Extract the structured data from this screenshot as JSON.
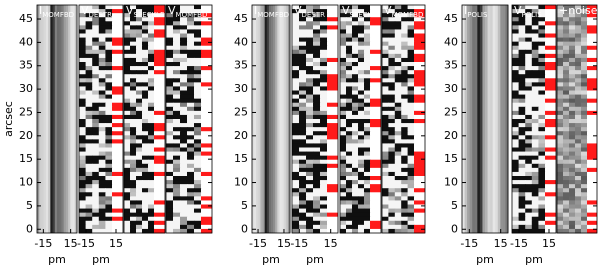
{
  "chart_data": [
    {
      "type": "image",
      "ylabel": "arcsec",
      "ylim": [
        -0.8,
        48
      ],
      "yticks": [
        0,
        5,
        10,
        15,
        20,
        25,
        30,
        35,
        40,
        45
      ],
      "panels": [
        {
          "label": "I",
          "label_sub": "MOMFBD",
          "kind": "intensity",
          "xlim": [
            -22,
            22
          ],
          "xticks": [
            -15,
            15
          ],
          "xlabel": "pm"
        },
        {
          "label": "V",
          "label_sub": "DESTR",
          "kind": "polarization",
          "xlim": [
            -22,
            22
          ],
          "xticks": [
            -15,
            15
          ],
          "xlabel": "pm"
        },
        {
          "label": "V",
          "label_sub": "SPECKLE",
          "kind": "polarization"
        },
        {
          "label": "V",
          "label_sub": "MOMFBD",
          "kind": "polarization"
        }
      ]
    },
    {
      "type": "image",
      "ylim": [
        -0.8,
        48
      ],
      "yticks": [
        0,
        5,
        10,
        15,
        20,
        25,
        30,
        35,
        40,
        45
      ],
      "panels": [
        {
          "label": "I",
          "label_sub": "MOMFBD",
          "kind": "intensity",
          "xlim": [
            -22,
            22
          ],
          "xticks": [
            -15,
            15
          ],
          "xlabel": "pm"
        },
        {
          "label": "V",
          "label_sub": "DESTR",
          "kind": "polarization",
          "xlim": [
            -22,
            22
          ],
          "xticks": [
            -15,
            15
          ],
          "xlabel": "pm"
        },
        {
          "label": "V",
          "label_sub": "SPECKLE",
          "kind": "polarization"
        },
        {
          "label": "V",
          "label_sub": "MOMFBD",
          "kind": "polarization"
        }
      ]
    },
    {
      "type": "image",
      "ylim": [
        -0.8,
        48
      ],
      "yticks": [
        0,
        5,
        10,
        15,
        20,
        25,
        30,
        35,
        40,
        45
      ],
      "panels": [
        {
          "label": "I",
          "label_sub": "POLIS",
          "kind": "intensity",
          "xlim": [
            -22,
            22
          ],
          "xticks": [
            -15,
            15
          ],
          "xlabel": "pm"
        },
        {
          "label": "V",
          "label_sub": "POLIS",
          "kind": "polarization",
          "xlim": [
            -22,
            22
          ],
          "xticks": [
            -15,
            15
          ],
          "xlabel": "pm"
        },
        {
          "label": "+noise",
          "kind": "noise"
        }
      ]
    }
  ]
}
